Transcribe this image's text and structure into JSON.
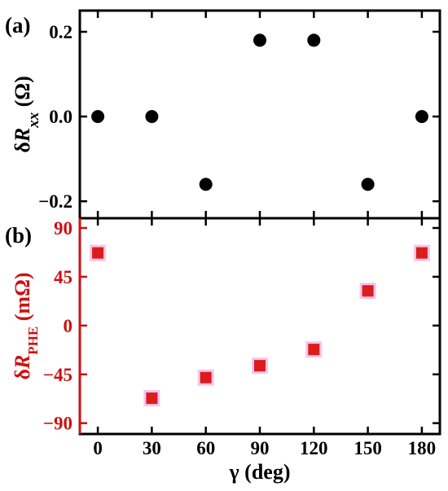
{
  "chart_data": [
    {
      "type": "scatter",
      "panel_label": "(a)",
      "ylabel": {
        "symbol": "δ",
        "main": "R",
        "sub": "xx",
        "unit": " (Ω)"
      },
      "ylim": [
        -0.24,
        0.25
      ],
      "yticks": [
        0.2,
        0.0,
        -0.2
      ],
      "ytick_labels": [
        "0.2",
        "0.0",
        "−0.2"
      ],
      "color": "#000000",
      "marker": "circle",
      "x": [
        0,
        30,
        60,
        90,
        120,
        150,
        180
      ],
      "y": [
        0.0,
        0.0,
        -0.16,
        0.18,
        0.18,
        -0.16,
        0.0
      ]
    },
    {
      "type": "scatter",
      "panel_label": "(b)",
      "ylabel": {
        "symbol": "δ",
        "main": "R",
        "sub": "PHE",
        "unit": " (mΩ)"
      },
      "ylim": [
        -100,
        99
      ],
      "yticks": [
        90,
        45,
        0,
        -45,
        -90
      ],
      "ytick_labels": [
        "90",
        "45",
        "0",
        "−45",
        "−90"
      ],
      "color": "#dd1c1c",
      "marker": "square",
      "x": [
        0,
        30,
        60,
        90,
        120,
        150,
        180
      ],
      "y": [
        67,
        -67,
        -48,
        -37,
        -22,
        32,
        67
      ]
    }
  ],
  "shared_x": {
    "xlabel": "γ (deg)",
    "xlim": [
      -10,
      190
    ],
    "xticks": [
      0,
      30,
      60,
      90,
      120,
      150,
      180
    ],
    "xtick_labels": [
      "0",
      "30",
      "60",
      "90",
      "120",
      "150",
      "180"
    ]
  },
  "colors": {
    "axis": "#000000",
    "panel_b_axis": "#cc1111",
    "marker_glow": "#f3c6ec"
  }
}
